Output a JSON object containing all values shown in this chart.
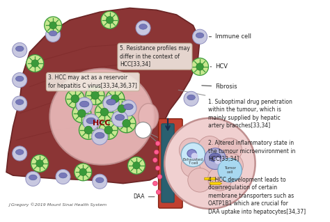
{
  "bg_color": "#ffffff",
  "liver_color": "#8B3535",
  "liver_dark": "#6a2525",
  "hcc_color": "#e8b8b8",
  "hcc_border": "#c09090",
  "portal_dark": "#7a3020",
  "portal_teal": "#2a6070",
  "immune_outer": "#c8c8e0",
  "immune_inner": "#7878b8",
  "hcv_outer": "#c8e890",
  "hcv_inner": "#3a9a3a",
  "hcv_cross": "#2a7a2a",
  "daa_color": "#ff6090",
  "micro_bg": "#f0d0d0",
  "micro_border": "#c09090",
  "cell_bg": "#e8b8b8",
  "exhausted_fill": "#c8e8f8",
  "exhausted_nucleus": "#8888cc",
  "immune_in_micro": "#a8a8d0",
  "tumor_blue": "#a8d8f0",
  "yellow": "#FFD700",
  "text_color": "#222222",
  "ann_box": "#f0e8d8",
  "ann_border": "#c0b098",
  "credit": "J Gregory ©2019 Mount Sinai Health System",
  "ann3_text": "3. HCC may act as a reservoir\nfor hepatitis C virus[33,34,36,37]",
  "ann5_text": "5. Resistance profiles may\ndiffer in the context of\nHCC[33,34]",
  "ann1_text": "1. Suboptimal drug penetration\nwithin the tumour, which is\nmainly supplied by hepatic\nartery branches[33,34]",
  "ann2_text": "2. Altered inflammatory state in\nthe tumour microenvironment in\nHCC[33,34]",
  "ann4_text": "4. HCC development leads to\ndownregulation of certain\nmembrane transporters such as\nOATP1B1 which are crucial for\nDAA uptake into hepatocytes[34,37]",
  "label_immune": "Immune cell",
  "label_hcv": "HCV",
  "label_fibrosis": "Fibrosis",
  "label_daa": "DAA",
  "label_exhausted": "Exhausted\nT cell",
  "label_tumor": "Tumor\ncell",
  "label_hcc": "HCC"
}
